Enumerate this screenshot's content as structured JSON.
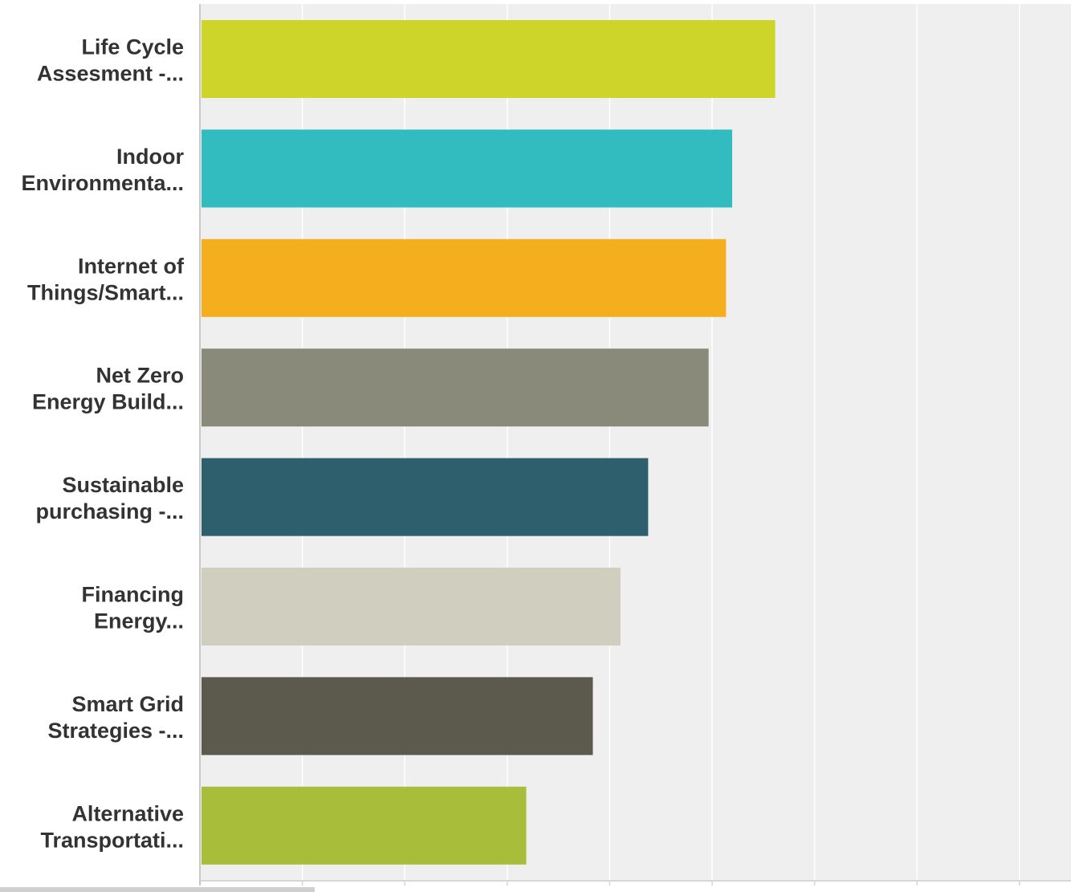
{
  "chart_data": {
    "type": "bar",
    "orientation": "horizontal",
    "categories": [
      [
        "Life Cycle",
        "Assesment -..."
      ],
      [
        "Indoor",
        "Environmenta..."
      ],
      [
        "Internet of",
        "Things/Smart..."
      ],
      [
        "Net Zero",
        "Energy Build..."
      ],
      [
        "Sustainable",
        "purchasing -..."
      ],
      [
        "Financing",
        "Energy..."
      ],
      [
        "Smart Grid",
        "Strategies -..."
      ],
      [
        "Alternative",
        "Transportati..."
      ]
    ],
    "values": [
      5.6,
      5.18,
      5.12,
      4.95,
      4.36,
      4.09,
      3.82,
      3.17
    ],
    "xlim": [
      0,
      8.6
    ],
    "gridlines": [
      1,
      2,
      3,
      4,
      5,
      6,
      7,
      8
    ],
    "grid": true,
    "colors": [
      "#CDD42A",
      "#33BCBF",
      "#F5AF1E",
      "#8A8A7A",
      "#2E5F6C",
      "#D0CEBF",
      "#5C5A4C",
      "#A8BD3A"
    ],
    "plot_background": "#EFEFEF",
    "title": "",
    "xlabel": "",
    "ylabel": ""
  }
}
